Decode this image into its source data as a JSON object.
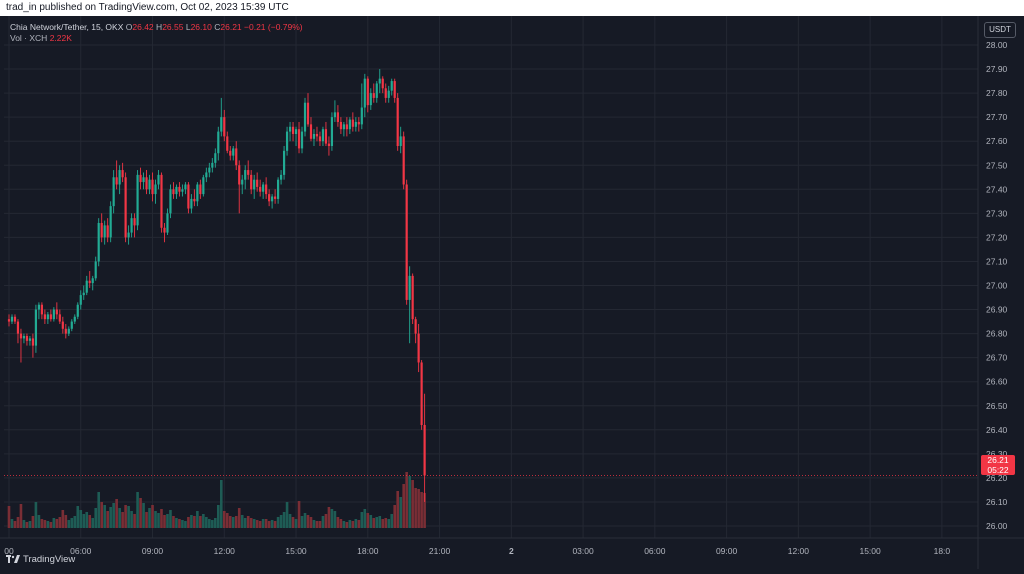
{
  "header": {
    "published_text": "trad_in published on TradingView.com, Oct 02, 2023 15:39 UTC"
  },
  "legend": {
    "symbol": "Chia Network/Tether, 15, OKX",
    "o_label": "O",
    "o_value": "26.42",
    "h_label": "H",
    "h_value": "26.55",
    "l_label": "L",
    "l_value": "26.10",
    "c_label": "C",
    "c_value": "26.21",
    "change": "−0.21 (−0.79%)",
    "vol_label": "Vol · XCH",
    "vol_value": "2.22K"
  },
  "currency_button": "USDT",
  "last_price": {
    "price": "26.21",
    "countdown": "05:22"
  },
  "footer": {
    "brand": "TradingView"
  },
  "colors": {
    "background": "#161a25",
    "up": "#22ab94",
    "down": "#f23645",
    "up_volume": "#1e5c55",
    "down_volume": "#7a2e35",
    "grid": "#242833",
    "text": "#b2b5be"
  },
  "chart_data": {
    "type": "candlestick",
    "timeframe": "15",
    "exchange": "OKX",
    "pair": "XCH/USDT",
    "ylim": [
      25.95,
      28.05
    ],
    "y_ticks": [
      "28.00",
      "27.90",
      "27.80",
      "27.70",
      "27.60",
      "27.50",
      "27.40",
      "27.30",
      "27.20",
      "27.10",
      "27.00",
      "26.90",
      "26.80",
      "26.70",
      "26.60",
      "26.50",
      "26.40",
      "26.30",
      "26.20",
      "26.10",
      "26.00"
    ],
    "x_ticks": [
      {
        "i": 0,
        "label": "00"
      },
      {
        "i": 24,
        "label": "06:00"
      },
      {
        "i": 48,
        "label": "09:00"
      },
      {
        "i": 72,
        "label": "12:00"
      },
      {
        "i": 96,
        "label": "15:00"
      },
      {
        "i": 120,
        "label": "18:00"
      },
      {
        "i": 144,
        "label": "21:00"
      },
      {
        "i": 168,
        "label": "2",
        "bold": true
      },
      {
        "i": 192,
        "label": "03:00"
      },
      {
        "i": 216,
        "label": "06:00"
      },
      {
        "i": 240,
        "label": "09:00"
      },
      {
        "i": 264,
        "label": "12:00"
      },
      {
        "i": 288,
        "label": "15:00"
      },
      {
        "i": 312,
        "label": "18:0"
      }
    ],
    "volume_scale_max": 1000,
    "candles": [
      [
        26.86,
        26.88,
        26.83,
        26.85,
        220
      ],
      [
        26.85,
        26.88,
        26.84,
        26.87,
        90
      ],
      [
        26.87,
        26.88,
        26.84,
        26.85,
        70
      ],
      [
        26.85,
        26.86,
        26.76,
        26.8,
        110
      ],
      [
        26.8,
        26.82,
        26.68,
        26.78,
        240
      ],
      [
        26.78,
        26.8,
        26.76,
        26.79,
        80
      ],
      [
        26.79,
        26.8,
        26.75,
        26.77,
        60
      ],
      [
        26.77,
        26.79,
        26.75,
        26.78,
        70
      ],
      [
        26.78,
        26.8,
        26.7,
        26.75,
        120
      ],
      [
        26.75,
        26.92,
        26.72,
        26.9,
        260
      ],
      [
        26.9,
        26.93,
        26.86,
        26.92,
        130
      ],
      [
        26.92,
        26.93,
        26.86,
        26.88,
        90
      ],
      [
        26.88,
        26.9,
        26.84,
        26.86,
        80
      ],
      [
        26.86,
        26.89,
        26.84,
        26.88,
        70
      ],
      [
        26.88,
        26.9,
        26.85,
        26.86,
        60
      ],
      [
        26.86,
        26.91,
        26.85,
        26.9,
        100
      ],
      [
        26.9,
        26.93,
        26.86,
        26.88,
        90
      ],
      [
        26.88,
        26.9,
        26.84,
        26.85,
        110
      ],
      [
        26.85,
        26.87,
        26.8,
        26.82,
        180
      ],
      [
        26.82,
        26.84,
        26.78,
        26.8,
        130
      ],
      [
        26.8,
        26.83,
        26.79,
        26.82,
        80
      ],
      [
        26.82,
        26.86,
        26.81,
        26.85,
        100
      ],
      [
        26.85,
        26.88,
        26.84,
        26.87,
        120
      ],
      [
        26.87,
        26.93,
        26.86,
        26.92,
        220
      ],
      [
        26.92,
        26.98,
        26.9,
        26.96,
        180
      ],
      [
        26.96,
        27.0,
        26.94,
        26.97,
        140
      ],
      [
        26.97,
        27.04,
        26.96,
        27.02,
        160
      ],
      [
        27.02,
        27.06,
        26.99,
        27.01,
        130
      ],
      [
        27.01,
        27.04,
        26.98,
        27.03,
        100
      ],
      [
        27.03,
        27.12,
        27.02,
        27.1,
        200
      ],
      [
        27.1,
        27.28,
        27.08,
        27.26,
        360
      ],
      [
        27.26,
        27.3,
        27.18,
        27.2,
        260
      ],
      [
        27.2,
        27.27,
        27.17,
        27.25,
        230
      ],
      [
        27.25,
        27.28,
        27.18,
        27.2,
        170
      ],
      [
        27.2,
        27.35,
        27.18,
        27.33,
        210
      ],
      [
        27.33,
        27.48,
        27.3,
        27.45,
        250
      ],
      [
        27.45,
        27.52,
        27.4,
        27.42,
        290
      ],
      [
        27.42,
        27.5,
        27.38,
        27.48,
        200
      ],
      [
        27.48,
        27.51,
        27.43,
        27.45,
        160
      ],
      [
        27.45,
        27.47,
        27.18,
        27.2,
        230
      ],
      [
        27.2,
        27.25,
        27.17,
        27.22,
        220
      ],
      [
        27.22,
        27.3,
        27.2,
        27.28,
        170
      ],
      [
        27.28,
        27.3,
        27.2,
        27.25,
        140
      ],
      [
        27.25,
        27.48,
        27.23,
        27.46,
        360
      ],
      [
        27.46,
        27.49,
        27.4,
        27.43,
        300
      ],
      [
        27.43,
        27.47,
        27.4,
        27.45,
        250
      ],
      [
        27.45,
        27.48,
        27.38,
        27.4,
        160
      ],
      [
        27.4,
        27.46,
        27.38,
        27.44,
        200
      ],
      [
        27.44,
        27.47,
        27.35,
        27.38,
        230
      ],
      [
        27.38,
        27.44,
        27.34,
        27.42,
        170
      ],
      [
        27.42,
        27.48,
        27.4,
        27.46,
        150
      ],
      [
        27.46,
        27.47,
        27.22,
        27.24,
        190
      ],
      [
        27.24,
        27.26,
        27.18,
        27.22,
        130
      ],
      [
        27.22,
        27.32,
        27.21,
        27.3,
        140
      ],
      [
        27.3,
        27.42,
        27.28,
        27.4,
        180
      ],
      [
        27.4,
        27.43,
        27.36,
        27.38,
        120
      ],
      [
        27.38,
        27.42,
        27.36,
        27.41,
        100
      ],
      [
        27.41,
        27.43,
        27.37,
        27.39,
        90
      ],
      [
        27.39,
        27.42,
        27.37,
        27.4,
        80
      ],
      [
        27.4,
        27.43,
        27.38,
        27.42,
        70
      ],
      [
        27.42,
        27.43,
        27.3,
        27.32,
        110
      ],
      [
        27.32,
        27.38,
        27.3,
        27.36,
        130
      ],
      [
        27.36,
        27.4,
        27.33,
        27.35,
        120
      ],
      [
        27.35,
        27.43,
        27.33,
        27.42,
        170
      ],
      [
        27.42,
        27.44,
        27.36,
        27.38,
        120
      ],
      [
        27.38,
        27.46,
        27.37,
        27.45,
        140
      ],
      [
        27.45,
        27.49,
        27.43,
        27.47,
        110
      ],
      [
        27.47,
        27.51,
        27.45,
        27.49,
        90
      ],
      [
        27.49,
        27.53,
        27.47,
        27.51,
        80
      ],
      [
        27.51,
        27.57,
        27.49,
        27.55,
        100
      ],
      [
        27.55,
        27.66,
        27.52,
        27.64,
        230
      ],
      [
        27.64,
        27.78,
        27.62,
        27.7,
        480
      ],
      [
        27.7,
        27.73,
        27.6,
        27.62,
        170
      ],
      [
        27.62,
        27.64,
        27.55,
        27.56,
        150
      ],
      [
        27.56,
        27.58,
        27.52,
        27.54,
        120
      ],
      [
        27.54,
        27.58,
        27.52,
        27.57,
        110
      ],
      [
        27.57,
        27.6,
        27.48,
        27.5,
        120
      ],
      [
        27.5,
        27.52,
        27.3,
        27.42,
        200
      ],
      [
        27.42,
        27.46,
        27.38,
        27.44,
        130
      ],
      [
        27.44,
        27.5,
        27.4,
        27.48,
        100
      ],
      [
        27.48,
        27.52,
        27.44,
        27.46,
        120
      ],
      [
        27.46,
        27.48,
        27.38,
        27.4,
        100
      ],
      [
        27.4,
        27.46,
        27.36,
        27.44,
        90
      ],
      [
        27.44,
        27.47,
        27.39,
        27.41,
        80
      ],
      [
        27.41,
        27.44,
        27.37,
        27.39,
        70
      ],
      [
        27.39,
        27.43,
        27.36,
        27.42,
        90
      ],
      [
        27.42,
        27.45,
        27.36,
        27.38,
        90
      ],
      [
        27.38,
        27.4,
        27.33,
        27.35,
        70
      ],
      [
        27.35,
        27.38,
        27.32,
        27.37,
        80
      ],
      [
        27.37,
        27.4,
        27.34,
        27.36,
        70
      ],
      [
        27.36,
        27.45,
        27.34,
        27.44,
        110
      ],
      [
        27.44,
        27.48,
        27.42,
        27.46,
        130
      ],
      [
        27.46,
        27.58,
        27.44,
        27.56,
        160
      ],
      [
        27.56,
        27.66,
        27.54,
        27.64,
        260
      ],
      [
        27.64,
        27.68,
        27.6,
        27.66,
        140
      ],
      [
        27.66,
        27.68,
        27.6,
        27.63,
        110
      ],
      [
        27.63,
        27.66,
        27.58,
        27.65,
        90
      ],
      [
        27.65,
        27.68,
        27.55,
        27.57,
        270
      ],
      [
        27.57,
        27.66,
        27.55,
        27.64,
        120
      ],
      [
        27.64,
        27.78,
        27.62,
        27.76,
        150
      ],
      [
        27.76,
        27.8,
        27.66,
        27.67,
        130
      ],
      [
        27.67,
        27.7,
        27.6,
        27.61,
        110
      ],
      [
        27.61,
        27.65,
        27.58,
        27.63,
        80
      ],
      [
        27.63,
        27.66,
        27.6,
        27.62,
        70
      ],
      [
        27.62,
        27.64,
        27.58,
        27.6,
        70
      ],
      [
        27.6,
        27.66,
        27.58,
        27.65,
        120
      ],
      [
        27.65,
        27.68,
        27.58,
        27.59,
        140
      ],
      [
        27.59,
        27.62,
        27.54,
        27.58,
        210
      ],
      [
        27.58,
        27.72,
        27.56,
        27.7,
        190
      ],
      [
        27.7,
        27.77,
        27.68,
        27.72,
        170
      ],
      [
        27.72,
        27.75,
        27.66,
        27.68,
        110
      ],
      [
        27.68,
        27.7,
        27.63,
        27.65,
        90
      ],
      [
        27.65,
        27.68,
        27.62,
        27.67,
        70
      ],
      [
        27.67,
        27.7,
        27.62,
        27.65,
        60
      ],
      [
        27.65,
        27.7,
        27.63,
        27.69,
        80
      ],
      [
        27.69,
        27.72,
        27.64,
        27.66,
        70
      ],
      [
        27.66,
        27.7,
        27.64,
        27.68,
        90
      ],
      [
        27.68,
        27.7,
        27.64,
        27.67,
        80
      ],
      [
        27.67,
        27.84,
        27.65,
        27.74,
        160
      ],
      [
        27.74,
        27.88,
        27.7,
        27.86,
        190
      ],
      [
        27.86,
        27.87,
        27.72,
        27.75,
        150
      ],
      [
        27.75,
        27.82,
        27.73,
        27.8,
        130
      ],
      [
        27.8,
        27.84,
        27.76,
        27.78,
        100
      ],
      [
        27.78,
        27.85,
        27.76,
        27.84,
        110
      ],
      [
        27.84,
        27.9,
        27.8,
        27.86,
        120
      ],
      [
        27.86,
        27.87,
        27.8,
        27.82,
        90
      ],
      [
        27.82,
        27.84,
        27.76,
        27.78,
        100
      ],
      [
        27.78,
        27.83,
        27.76,
        27.81,
        90
      ],
      [
        27.81,
        27.86,
        27.79,
        27.85,
        140
      ],
      [
        27.85,
        27.86,
        27.76,
        27.78,
        230
      ],
      [
        27.78,
        27.8,
        27.56,
        27.58,
        370
      ],
      [
        27.58,
        27.66,
        27.55,
        27.62,
        310
      ],
      [
        27.62,
        27.64,
        27.4,
        27.42,
        440
      ],
      [
        27.42,
        27.44,
        26.92,
        26.94,
        560
      ],
      [
        26.94,
        27.08,
        26.76,
        27.04,
        520
      ],
      [
        27.04,
        27.05,
        26.84,
        26.86,
        480
      ],
      [
        26.86,
        26.87,
        26.76,
        26.8,
        400
      ],
      [
        26.8,
        26.84,
        26.64,
        26.68,
        390
      ],
      [
        26.68,
        26.69,
        26.4,
        26.42,
        360
      ],
      [
        26.42,
        26.55,
        26.1,
        26.21,
        350
      ]
    ]
  }
}
